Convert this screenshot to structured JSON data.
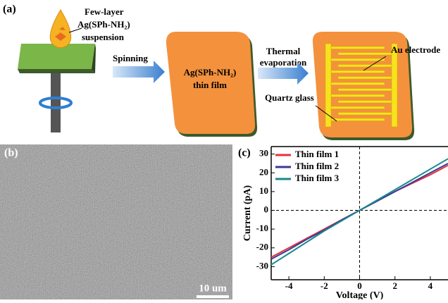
{
  "panel_a": {
    "label": "(a)",
    "drop_label": [
      "Few-layer",
      "Ag(SPh-NH₂)",
      "suspension"
    ],
    "step1": "Spinning",
    "film_label": [
      "Ag(SPh-NH₂)",
      "thin film"
    ],
    "step2": [
      "Thermal",
      "evaporation"
    ],
    "electrode_label": "Au electrode",
    "glass_label": "Quartz glass"
  },
  "panel_b": {
    "label": "(b)",
    "scale_bar": "10 um"
  },
  "chart_data": {
    "type": "line",
    "label": "(c)",
    "xlabel": "Voltage (V)",
    "ylabel": "Current (pA)",
    "x": [
      -5,
      -4,
      -3,
      -2,
      -1,
      0,
      1,
      2,
      3,
      4,
      5
    ],
    "series": [
      {
        "name": "Thin film 1",
        "color": "#e8323c",
        "values": [
          -25,
          -20,
          -15,
          -10,
          -5,
          0,
          5,
          10,
          14.5,
          19,
          24
        ]
      },
      {
        "name": "Thin film 2",
        "color": "#3a3a9a",
        "values": [
          -26,
          -21,
          -15.5,
          -10.5,
          -5,
          0,
          5,
          10,
          15,
          20,
          25
        ]
      },
      {
        "name": "Thin film 3",
        "color": "#1a8a8a",
        "values": [
          -29,
          -23,
          -17,
          -11,
          -5.5,
          0,
          5.5,
          11,
          16.5,
          22,
          27.5
        ]
      }
    ],
    "xlim": [
      -5,
      5
    ],
    "xticks": [
      -4,
      -2,
      0,
      2,
      4
    ],
    "ylim": [
      -37,
      34
    ],
    "yticks": [
      -30,
      -20,
      -10,
      0,
      10,
      20,
      30
    ],
    "legend": "upper left"
  }
}
